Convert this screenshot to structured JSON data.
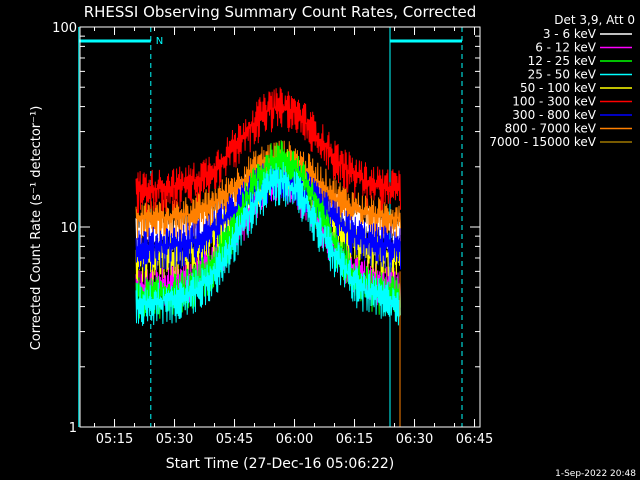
{
  "chart_data": {
    "type": "line",
    "title": "RHESSI Observing Summary Count Rates, Corrected",
    "xlabel": "Start Time (27-Dec-16 05:06:22)",
    "ylabel": "Corrected Count Rate (s⁻¹ detector⁻¹)",
    "yscale": "log",
    "ylim": [
      1,
      100
    ],
    "xlim_minutes_after_start": [
      0,
      100
    ],
    "x_tick_labels": [
      "05:15",
      "05:30",
      "05:45",
      "06:00",
      "06:15",
      "06:30",
      "06:45"
    ],
    "y_tick_labels": [
      "1",
      "10",
      "100"
    ],
    "legend_header": "Det 3,9, Att 0",
    "legend_position": "top-right",
    "footer": "1-Sep-2022 20:48",
    "attenuator_flag_label": "N",
    "series": [
      {
        "name": "3 - 6 keV",
        "color": "#ffffff",
        "base": 9.5,
        "peak": 18
      },
      {
        "name": "6 - 12 keV",
        "color": "#ff00ff",
        "base": 5,
        "peak": 17
      },
      {
        "name": "12 - 25 keV",
        "color": "#00ff00",
        "base": 4.5,
        "peak": 22
      },
      {
        "name": "25 - 50 keV",
        "color": "#00ffff",
        "base": 4.2,
        "peak": 17
      },
      {
        "name": "50 - 100 keV",
        "color": "#ffff00",
        "base": 7,
        "peak": 20
      },
      {
        "name": "100 - 300 keV",
        "color": "#ff0000",
        "base": 15.5,
        "peak": 40
      },
      {
        "name": "300 - 800 keV",
        "color": "#0000ff",
        "base": 8,
        "peak": 18
      },
      {
        "name": "800 - 7000 keV",
        "color": "#ff8000",
        "base": 11,
        "peak": 22
      },
      {
        "name": "7000 - 15000 keV",
        "color": "#a07800",
        "base": 0,
        "peak": 0
      }
    ],
    "data_span_minutes": [
      14,
      80
    ],
    "peak_time_minutes": 50,
    "orbit_markers_solid_minutes": [
      -0.3,
      77.5
    ],
    "orbit_markers_dashed_minutes": [
      17.7,
      95.5
    ]
  }
}
